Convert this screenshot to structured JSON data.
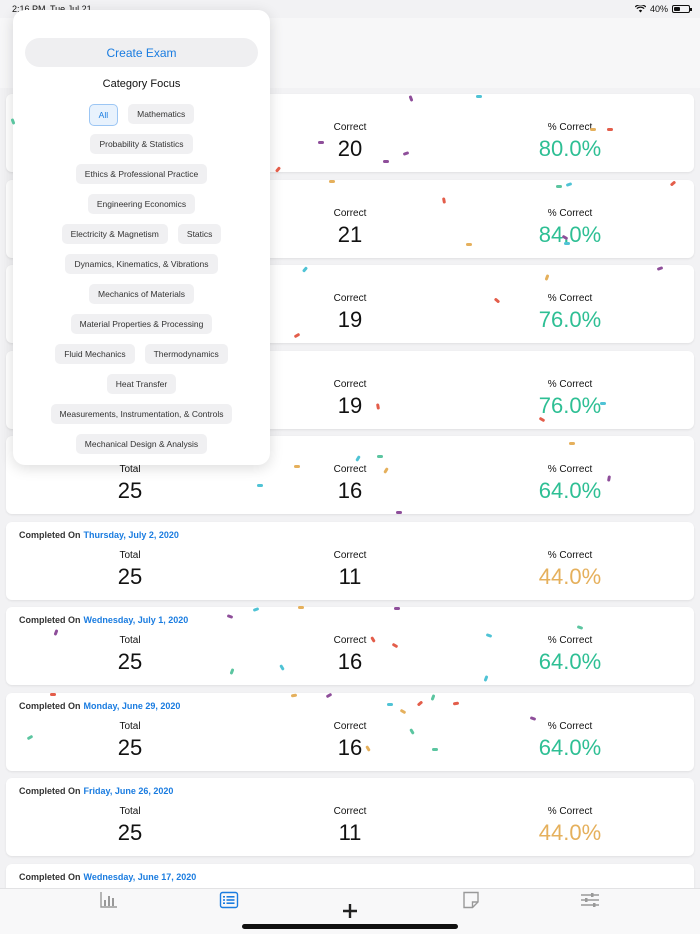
{
  "status": {
    "time": "2:16 PM",
    "date": "Tue Jul 21",
    "battery": "40%",
    "battery_level": 0.4
  },
  "popover": {
    "create_label": "Create Exam",
    "category_title": "Category Focus",
    "chip_rows": [
      [
        "All",
        "Mathematics"
      ],
      [
        "Probability & Statistics"
      ],
      [
        "Ethics & Professional Practice"
      ],
      [
        "Engineering Economics"
      ],
      [
        "Electricity & Magnetism",
        "Statics"
      ],
      [
        "Dynamics, Kinematics, & Vibrations"
      ],
      [
        "Mechanics of Materials"
      ],
      [
        "Material Properties & Processing"
      ],
      [
        "Fluid Mechanics",
        "Thermodynamics"
      ],
      [
        "Heat Transfer"
      ],
      [
        "Measurements, Instrumentation, & Controls"
      ],
      [
        "Mechanical Design & Analysis"
      ]
    ],
    "selected_chip": "All"
  },
  "results": {
    "completed_label": "Completed On",
    "total_label": "Total",
    "correct_label": "Correct",
    "pct_label": "% Correct",
    "rows": [
      {
        "date": "",
        "total": "",
        "correct": "20",
        "pct": "80.0%",
        "grade": "good"
      },
      {
        "date": "",
        "total": "",
        "correct": "21",
        "pct": "84.0%",
        "grade": "good"
      },
      {
        "date": "",
        "total": "",
        "correct": "19",
        "pct": "76.0%",
        "grade": "good"
      },
      {
        "date": "",
        "total": "",
        "correct": "19",
        "pct": "76.0%",
        "grade": "good"
      },
      {
        "date": "",
        "total": "25",
        "correct": "16",
        "pct": "64.0%",
        "grade": "good"
      },
      {
        "date": "Thursday, July 2, 2020",
        "total": "25",
        "correct": "11",
        "pct": "44.0%",
        "grade": "warn"
      },
      {
        "date": "Wednesday, July 1, 2020",
        "total": "25",
        "correct": "16",
        "pct": "64.0%",
        "grade": "good"
      },
      {
        "date": "Monday, June 29, 2020",
        "total": "25",
        "correct": "16",
        "pct": "64.0%",
        "grade": "good"
      },
      {
        "date": "Friday, June 26, 2020",
        "total": "25",
        "correct": "11",
        "pct": "44.0%",
        "grade": "warn"
      },
      {
        "date": "Wednesday, June 17, 2020",
        "total": "",
        "correct": "",
        "pct": "",
        "grade": "good"
      }
    ]
  },
  "tabs": [
    {
      "name": "stats",
      "icon": "bar-chart-icon"
    },
    {
      "name": "exams",
      "icon": "list-icon",
      "active": true
    },
    {
      "name": "new",
      "icon": "plus-icon"
    },
    {
      "name": "notes",
      "icon": "note-icon"
    },
    {
      "name": "settings",
      "icon": "sliders-icon"
    }
  ],
  "colors": {
    "accent": "#1a7ce0",
    "good": "#2ebf94",
    "warn": "#e5b05c"
  }
}
